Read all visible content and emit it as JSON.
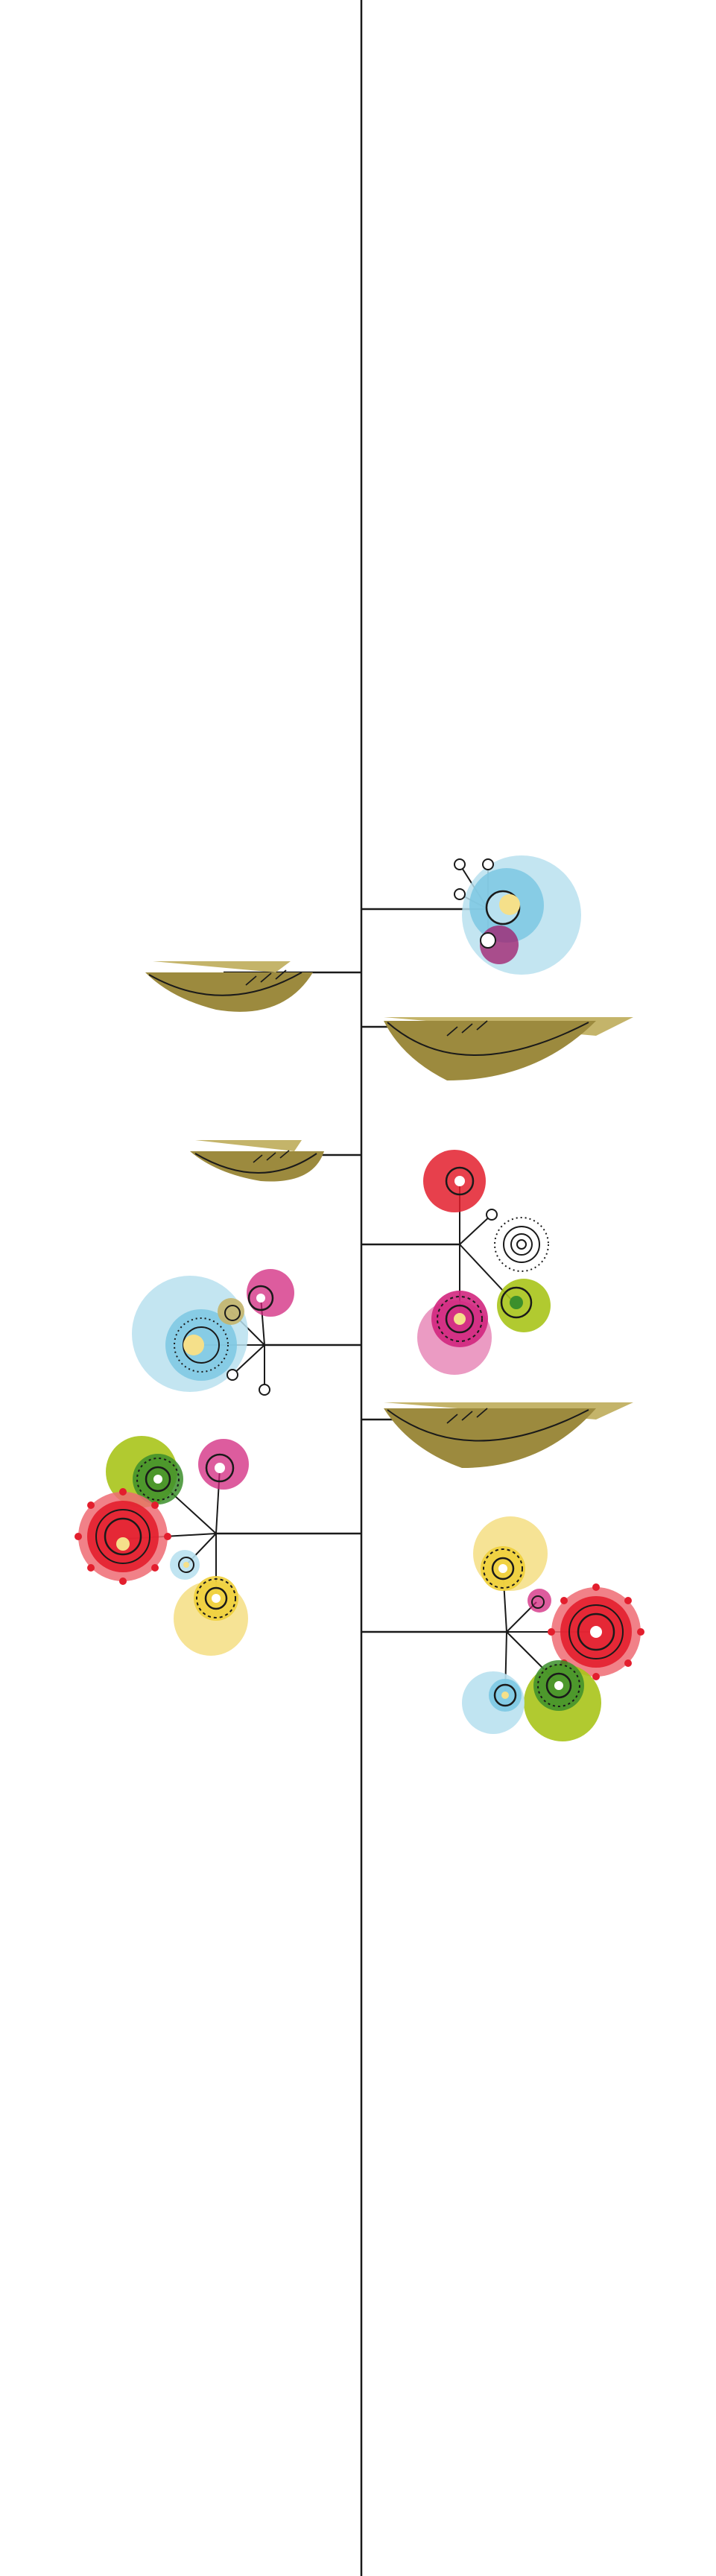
{
  "colors": {
    "background": "#ffffff",
    "line": "#1a1a1a",
    "leaf_fill": "#9c8a3e",
    "leaf_light": "#c4b46a",
    "red": "#e31e2d",
    "red_light": "#ef6b73",
    "green": "#a8c41a",
    "green_dark": "#3c8f2c",
    "blue": "#7cc8e3",
    "blue_light": "#b9e1ef",
    "pink": "#d1267e",
    "pink_light": "#e88ab8",
    "magenta": "#a01a6a",
    "yellow": "#f0cf3a",
    "yellow_light": "#f5e08a",
    "white": "#ffffff"
  },
  "icons": [
    "central-stem",
    "leaf-shelf",
    "flower-cluster",
    "flower-blossom",
    "bud-dot",
    "sunburst-flower"
  ]
}
